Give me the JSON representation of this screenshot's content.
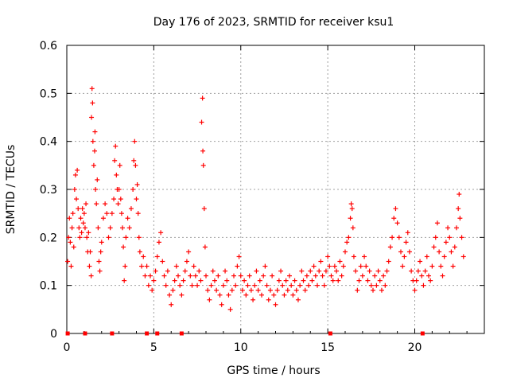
{
  "chart_data": {
    "type": "scatter",
    "title": "Day 176 of 2023, SRMTID for receiver ksu1",
    "xlabel": "GPS time / hours",
    "ylabel": "SRMTID / TECUs",
    "xlim": [
      0,
      24
    ],
    "ylim": [
      0,
      0.6
    ],
    "x_ticks": [
      "0",
      "5",
      "10",
      "15",
      "20"
    ],
    "y_ticks": [
      "0",
      "0.1",
      "0.2",
      "0.3",
      "0.4",
      "0.5",
      "0.6"
    ],
    "grid": true,
    "marker": "plus",
    "color": "#ff0000",
    "series": [
      {
        "name": "SRMTID",
        "points": [
          [
            0.05,
            0.15
          ],
          [
            0.1,
            0.2
          ],
          [
            0.15,
            0.24
          ],
          [
            0.2,
            0.19
          ],
          [
            0.25,
            0.14
          ],
          [
            0.3,
            0.22
          ],
          [
            0.35,
            0.25
          ],
          [
            0.4,
            0.18
          ],
          [
            0.45,
            0.3
          ],
          [
            0.5,
            0.33
          ],
          [
            0.55,
            0.28
          ],
          [
            0.6,
            0.34
          ],
          [
            0.65,
            0.26
          ],
          [
            0.7,
            0.22
          ],
          [
            0.75,
            0.2
          ],
          [
            0.8,
            0.24
          ],
          [
            0.85,
            0.21
          ],
          [
            0.9,
            0.26
          ],
          [
            0.95,
            0.23
          ],
          [
            1.0,
            0.25
          ],
          [
            1.05,
            0.22
          ],
          [
            1.1,
            0.27
          ],
          [
            1.15,
            0.2
          ],
          [
            1.2,
            0.17
          ],
          [
            1.25,
            0.21
          ],
          [
            1.3,
            0.14
          ],
          [
            1.35,
            0.17
          ],
          [
            1.4,
            0.12
          ],
          [
            1.42,
            0.45
          ],
          [
            1.45,
            0.51
          ],
          [
            1.48,
            0.48
          ],
          [
            1.5,
            0.4
          ],
          [
            1.55,
            0.35
          ],
          [
            1.6,
            0.38
          ],
          [
            1.62,
            0.42
          ],
          [
            1.65,
            0.3
          ],
          [
            1.7,
            0.27
          ],
          [
            1.75,
            0.32
          ],
          [
            1.8,
            0.22
          ],
          [
            1.85,
            0.15
          ],
          [
            1.9,
            0.13
          ],
          [
            1.95,
            0.17
          ],
          [
            2.0,
            0.19
          ],
          [
            2.1,
            0.24
          ],
          [
            2.2,
            0.27
          ],
          [
            2.3,
            0.25
          ],
          [
            2.4,
            0.2
          ],
          [
            2.5,
            0.22
          ],
          [
            2.6,
            0.25
          ],
          [
            2.7,
            0.28
          ],
          [
            2.75,
            0.36
          ],
          [
            2.8,
            0.39
          ],
          [
            2.85,
            0.33
          ],
          [
            2.9,
            0.3
          ],
          [
            2.95,
            0.27
          ],
          [
            3.0,
            0.3
          ],
          [
            3.05,
            0.35
          ],
          [
            3.1,
            0.28
          ],
          [
            3.15,
            0.25
          ],
          [
            3.2,
            0.22
          ],
          [
            3.25,
            0.18
          ],
          [
            3.3,
            0.11
          ],
          [
            3.35,
            0.14
          ],
          [
            3.4,
            0.2
          ],
          [
            3.5,
            0.24
          ],
          [
            3.6,
            0.22
          ],
          [
            3.7,
            0.26
          ],
          [
            3.8,
            0.3
          ],
          [
            3.85,
            0.36
          ],
          [
            3.9,
            0.4
          ],
          [
            3.95,
            0.35
          ],
          [
            4.0,
            0.28
          ],
          [
            4.05,
            0.31
          ],
          [
            4.1,
            0.25
          ],
          [
            4.15,
            0.2
          ],
          [
            4.2,
            0.17
          ],
          [
            4.3,
            0.14
          ],
          [
            4.4,
            0.16
          ],
          [
            4.5,
            0.12
          ],
          [
            4.6,
            0.14
          ],
          [
            4.7,
            0.1
          ],
          [
            4.8,
            0.12
          ],
          [
            4.9,
            0.09
          ],
          [
            5.0,
            0.11
          ],
          [
            5.1,
            0.13
          ],
          [
            5.2,
            0.16
          ],
          [
            5.3,
            0.19
          ],
          [
            5.4,
            0.21
          ],
          [
            5.5,
            0.15
          ],
          [
            5.6,
            0.12
          ],
          [
            5.7,
            0.1
          ],
          [
            5.8,
            0.13
          ],
          [
            5.9,
            0.08
          ],
          [
            6.0,
            0.06
          ],
          [
            6.1,
            0.09
          ],
          [
            6.2,
            0.11
          ],
          [
            6.3,
            0.14
          ],
          [
            6.4,
            0.12
          ],
          [
            6.5,
            0.1
          ],
          [
            6.6,
            0.08
          ],
          [
            6.7,
            0.11
          ],
          [
            6.8,
            0.13
          ],
          [
            6.9,
            0.15
          ],
          [
            7.0,
            0.17
          ],
          [
            7.1,
            0.12
          ],
          [
            7.2,
            0.1
          ],
          [
            7.3,
            0.14
          ],
          [
            7.4,
            0.12
          ],
          [
            7.5,
            0.1
          ],
          [
            7.6,
            0.13
          ],
          [
            7.7,
            0.11
          ],
          [
            7.75,
            0.44
          ],
          [
            7.8,
            0.49
          ],
          [
            7.82,
            0.38
          ],
          [
            7.85,
            0.35
          ],
          [
            7.9,
            0.26
          ],
          [
            7.95,
            0.18
          ],
          [
            8.0,
            0.12
          ],
          [
            8.1,
            0.09
          ],
          [
            8.2,
            0.07
          ],
          [
            8.3,
            0.1
          ],
          [
            8.4,
            0.13
          ],
          [
            8.5,
            0.11
          ],
          [
            8.6,
            0.09
          ],
          [
            8.7,
            0.12
          ],
          [
            8.8,
            0.08
          ],
          [
            8.9,
            0.06
          ],
          [
            9.0,
            0.1
          ],
          [
            9.1,
            0.13
          ],
          [
            9.2,
            0.11
          ],
          [
            9.3,
            0.08
          ],
          [
            9.4,
            0.05
          ],
          [
            9.5,
            0.09
          ],
          [
            9.6,
            0.12
          ],
          [
            9.7,
            0.1
          ],
          [
            9.8,
            0.14
          ],
          [
            9.9,
            0.16
          ],
          [
            10.0,
            0.12
          ],
          [
            10.1,
            0.09
          ],
          [
            10.2,
            0.11
          ],
          [
            10.3,
            0.08
          ],
          [
            10.4,
            0.1
          ],
          [
            10.5,
            0.12
          ],
          [
            10.6,
            0.09
          ],
          [
            10.7,
            0.07
          ],
          [
            10.8,
            0.1
          ],
          [
            10.9,
            0.13
          ],
          [
            11.0,
            0.09
          ],
          [
            11.1,
            0.11
          ],
          [
            11.2,
            0.08
          ],
          [
            11.3,
            0.12
          ],
          [
            11.4,
            0.14
          ],
          [
            11.5,
            0.1
          ],
          [
            11.6,
            0.07
          ],
          [
            11.7,
            0.09
          ],
          [
            11.8,
            0.12
          ],
          [
            11.9,
            0.08
          ],
          [
            12.0,
            0.06
          ],
          [
            12.1,
            0.09
          ],
          [
            12.2,
            0.11
          ],
          [
            12.3,
            0.13
          ],
          [
            12.4,
            0.1
          ],
          [
            12.5,
            0.08
          ],
          [
            12.6,
            0.11
          ],
          [
            12.7,
            0.09
          ],
          [
            12.8,
            0.12
          ],
          [
            12.9,
            0.1
          ],
          [
            13.0,
            0.08
          ],
          [
            13.1,
            0.11
          ],
          [
            13.2,
            0.09
          ],
          [
            13.3,
            0.07
          ],
          [
            13.4,
            0.1
          ],
          [
            13.5,
            0.13
          ],
          [
            13.6,
            0.11
          ],
          [
            13.7,
            0.09
          ],
          [
            13.8,
            0.12
          ],
          [
            13.9,
            0.1
          ],
          [
            14.0,
            0.13
          ],
          [
            14.1,
            0.11
          ],
          [
            14.2,
            0.14
          ],
          [
            14.3,
            0.12
          ],
          [
            14.4,
            0.1
          ],
          [
            14.5,
            0.13
          ],
          [
            14.6,
            0.15
          ],
          [
            14.7,
            0.12
          ],
          [
            14.8,
            0.1
          ],
          [
            14.9,
            0.13
          ],
          [
            15.0,
            0.16
          ],
          [
            15.1,
            0.14
          ],
          [
            15.2,
            0.12
          ],
          [
            15.3,
            0.11
          ],
          [
            15.4,
            0.14
          ],
          [
            15.5,
            0.13
          ],
          [
            15.6,
            0.11
          ],
          [
            15.7,
            0.15
          ],
          [
            15.8,
            0.12
          ],
          [
            15.9,
            0.14
          ],
          [
            16.0,
            0.17
          ],
          [
            16.1,
            0.19
          ],
          [
            16.2,
            0.2
          ],
          [
            16.3,
            0.24
          ],
          [
            16.35,
            0.27
          ],
          [
            16.4,
            0.26
          ],
          [
            16.45,
            0.22
          ],
          [
            16.5,
            0.16
          ],
          [
            16.6,
            0.13
          ],
          [
            16.7,
            0.09
          ],
          [
            16.8,
            0.11
          ],
          [
            16.9,
            0.14
          ],
          [
            17.0,
            0.12
          ],
          [
            17.1,
            0.16
          ],
          [
            17.2,
            0.14
          ],
          [
            17.3,
            0.11
          ],
          [
            17.4,
            0.13
          ],
          [
            17.5,
            0.1
          ],
          [
            17.6,
            0.09
          ],
          [
            17.7,
            0.12
          ],
          [
            17.8,
            0.1
          ],
          [
            17.9,
            0.13
          ],
          [
            18.0,
            0.11
          ],
          [
            18.1,
            0.09
          ],
          [
            18.2,
            0.12
          ],
          [
            18.3,
            0.1
          ],
          [
            18.4,
            0.13
          ],
          [
            18.5,
            0.15
          ],
          [
            18.6,
            0.18
          ],
          [
            18.7,
            0.2
          ],
          [
            18.8,
            0.24
          ],
          [
            18.9,
            0.26
          ],
          [
            19.0,
            0.23
          ],
          [
            19.1,
            0.2
          ],
          [
            19.2,
            0.17
          ],
          [
            19.3,
            0.14
          ],
          [
            19.4,
            0.16
          ],
          [
            19.5,
            0.19
          ],
          [
            19.6,
            0.21
          ],
          [
            19.7,
            0.17
          ],
          [
            19.8,
            0.13
          ],
          [
            19.9,
            0.11
          ],
          [
            20.0,
            0.09
          ],
          [
            20.1,
            0.11
          ],
          [
            20.2,
            0.13
          ],
          [
            20.3,
            0.15
          ],
          [
            20.4,
            0.12
          ],
          [
            20.5,
            0.1
          ],
          [
            20.6,
            0.13
          ],
          [
            20.7,
            0.16
          ],
          [
            20.8,
            0.12
          ],
          [
            20.9,
            0.11
          ],
          [
            21.0,
            0.14
          ],
          [
            21.1,
            0.18
          ],
          [
            21.2,
            0.2
          ],
          [
            21.3,
            0.23
          ],
          [
            21.4,
            0.17
          ],
          [
            21.5,
            0.14
          ],
          [
            21.6,
            0.12
          ],
          [
            21.7,
            0.16
          ],
          [
            21.8,
            0.19
          ],
          [
            21.9,
            0.22
          ],
          [
            22.0,
            0.2
          ],
          [
            22.1,
            0.17
          ],
          [
            22.2,
            0.14
          ],
          [
            22.3,
            0.18
          ],
          [
            22.4,
            0.22
          ],
          [
            22.5,
            0.26
          ],
          [
            22.55,
            0.29
          ],
          [
            22.6,
            0.24
          ],
          [
            22.7,
            0.2
          ],
          [
            22.8,
            0.16
          ]
        ]
      }
    ],
    "baseline_markers_x": [
      0.05,
      1.05,
      2.6,
      4.6,
      5.2,
      6.6,
      15.15,
      20.45
    ]
  }
}
